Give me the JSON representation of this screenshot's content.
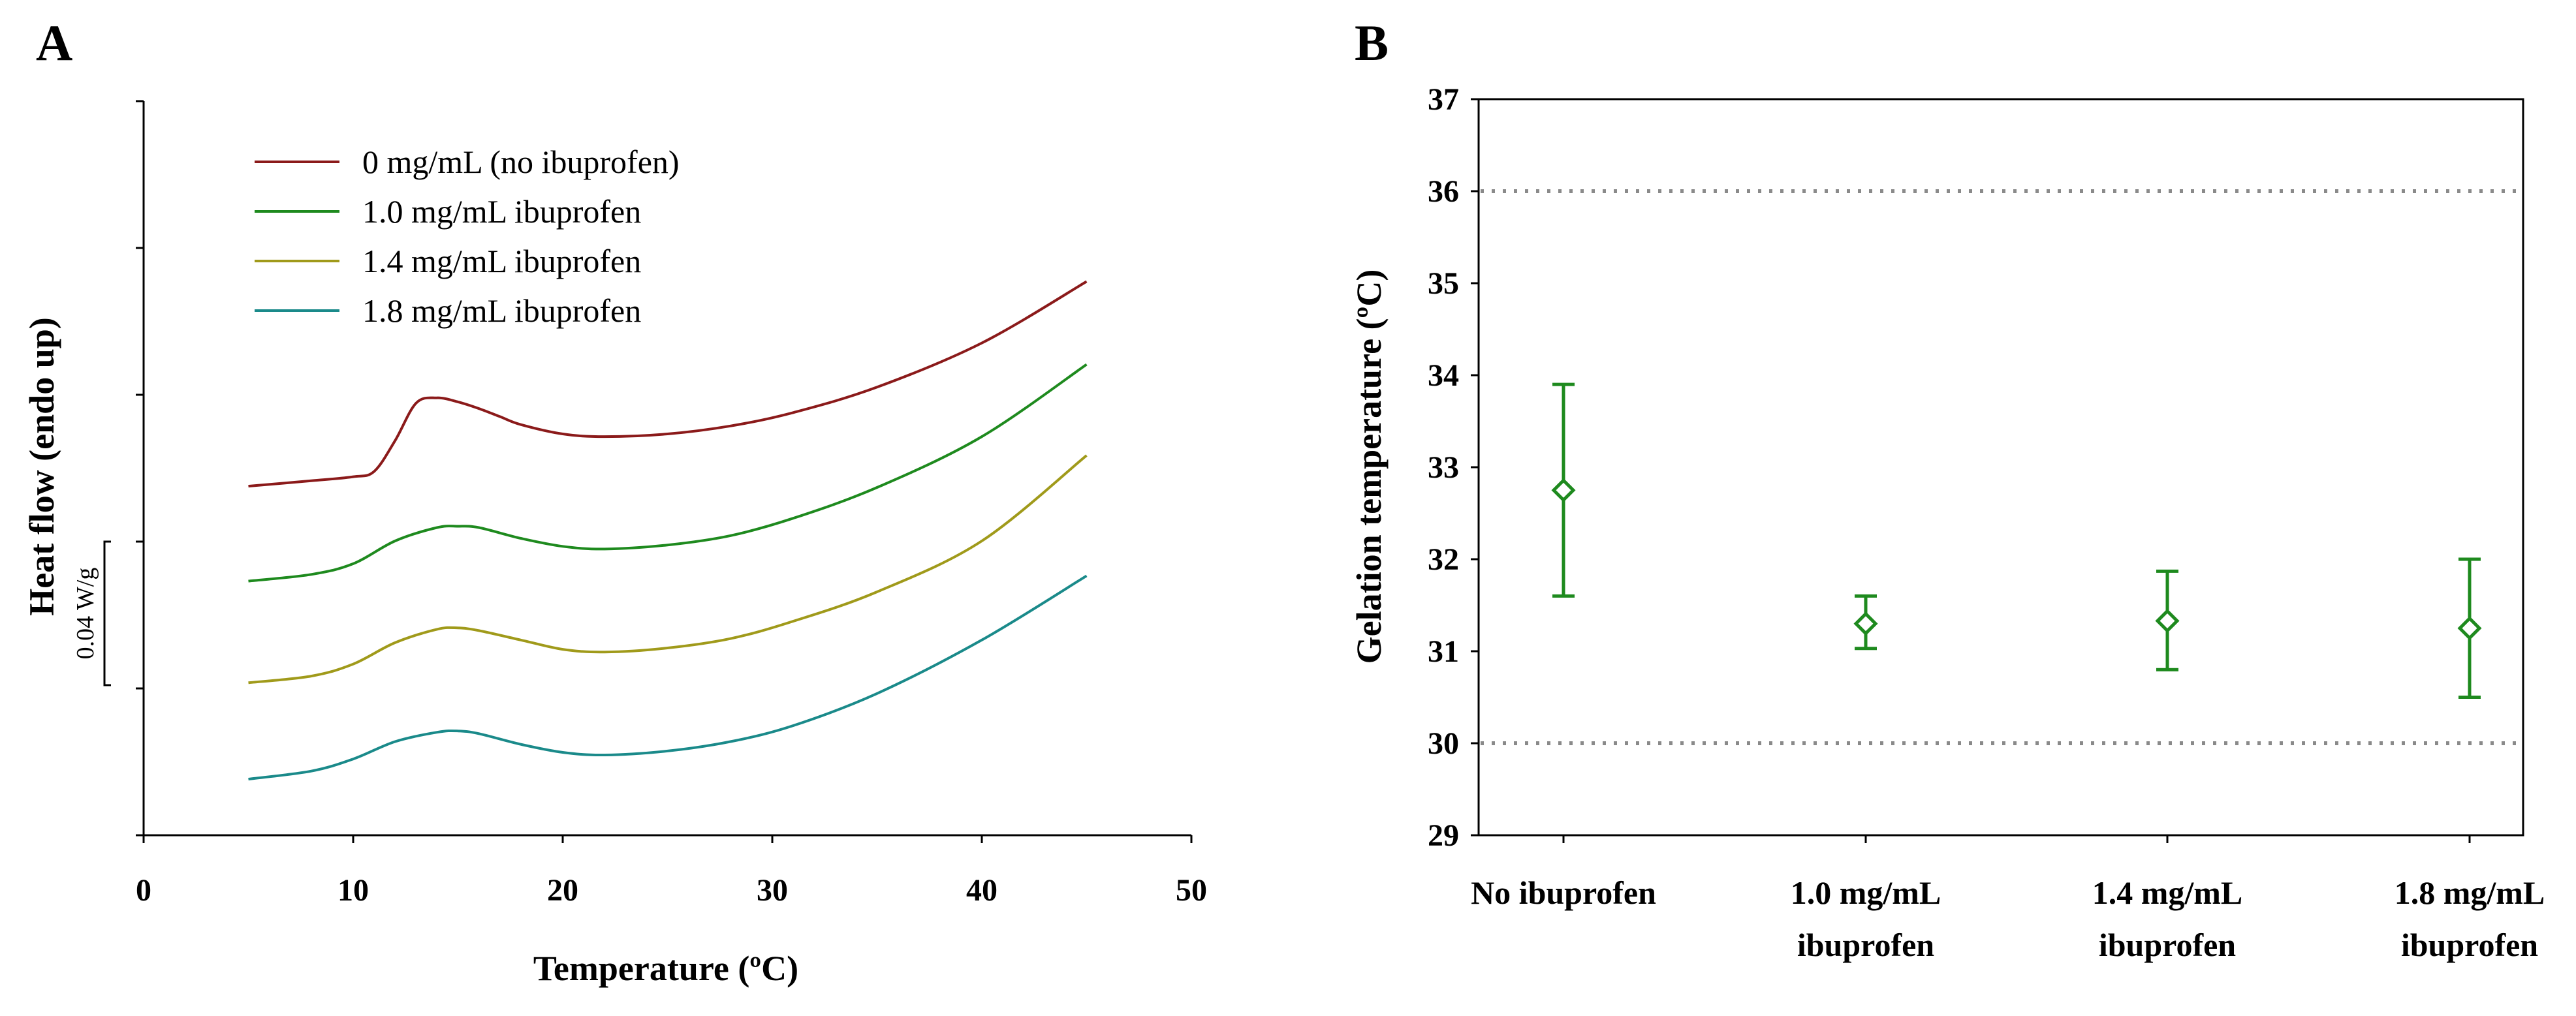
{
  "chart_data": [
    {
      "panel": "A",
      "type": "line",
      "xlabel": "Temperature (ºC)",
      "ylabel": "Heat flow (endo up)",
      "xlim": [
        0,
        50
      ],
      "x_ticks": [
        "0",
        "10",
        "20",
        "30",
        "40",
        "50"
      ],
      "scale_bar_label": "0.04 W/g",
      "legend_position": "top-left",
      "series": [
        {
          "name": "0 mg/mL (no ibuprofen)",
          "color": "#8b1a1a",
          "x": [
            5,
            8,
            10,
            11,
            12,
            13,
            14,
            15,
            16,
            17,
            18,
            20,
            22,
            25,
            28,
            31,
            35,
            40,
            45
          ],
          "y": [
            0.0,
            0.002,
            0.0035,
            0.0055,
            0.017,
            0.031,
            0.033,
            0.0315,
            0.029,
            0.026,
            0.023,
            0.0195,
            0.0185,
            0.0195,
            0.0225,
            0.0275,
            0.037,
            0.0535,
            0.0765
          ]
        },
        {
          "name": "1.0 mg/mL ibuprofen",
          "color": "#1e8a1e",
          "x": [
            5,
            8,
            10,
            12,
            14,
            15,
            16,
            18,
            20,
            22,
            25,
            28,
            31,
            35,
            40,
            45
          ],
          "y": [
            -0.0355,
            -0.033,
            -0.029,
            -0.0205,
            -0.0155,
            -0.015,
            -0.0155,
            -0.0195,
            -0.0225,
            -0.0235,
            -0.022,
            -0.0185,
            -0.012,
            -0.0005,
            0.0185,
            0.0455
          ]
        },
        {
          "name": "1.4 mg/mL ibuprofen",
          "color": "#a09a1a",
          "x": [
            5,
            8,
            10,
            12,
            14,
            15,
            16,
            18,
            20,
            22,
            25,
            28,
            31,
            35,
            40,
            45
          ],
          "y": [
            -0.0735,
            -0.071,
            -0.0665,
            -0.0585,
            -0.0535,
            -0.053,
            -0.054,
            -0.0575,
            -0.061,
            -0.062,
            -0.0605,
            -0.057,
            -0.0505,
            -0.0395,
            -0.0205,
            0.0115
          ]
        },
        {
          "name": "1.8 mg/mL ibuprofen",
          "color": "#1a8a8a",
          "x": [
            5,
            8,
            10,
            12,
            14,
            15,
            16,
            18,
            20,
            22,
            25,
            28,
            31,
            35,
            40,
            45
          ],
          "y": [
            -0.1095,
            -0.1065,
            -0.102,
            -0.0955,
            -0.092,
            -0.0915,
            -0.0925,
            -0.0965,
            -0.0995,
            -0.1005,
            -0.099,
            -0.0955,
            -0.0895,
            -0.0775,
            -0.0575,
            -0.0335
          ]
        }
      ]
    },
    {
      "panel": "B",
      "type": "scatter",
      "ylabel": "Gelation temperature (ºC)",
      "ylim": [
        29,
        37
      ],
      "y_ticks": [
        "29",
        "30",
        "31",
        "32",
        "33",
        "34",
        "35",
        "36",
        "37"
      ],
      "reference_lines": [
        30,
        36
      ],
      "marker_color": "#1e8a1e",
      "categories": [
        [
          "No ibuprofen"
        ],
        [
          "1.0 mg/mL",
          "ibuprofen"
        ],
        [
          "1.4 mg/mL",
          "ibuprofen"
        ],
        [
          "1.8 mg/mL",
          "ibuprofen"
        ]
      ],
      "values": [
        32.75,
        31.3,
        31.33,
        31.25
      ],
      "error_low": [
        31.6,
        31.03,
        30.8,
        30.5
      ],
      "error_high": [
        33.9,
        31.6,
        31.87,
        32.0
      ]
    }
  ]
}
